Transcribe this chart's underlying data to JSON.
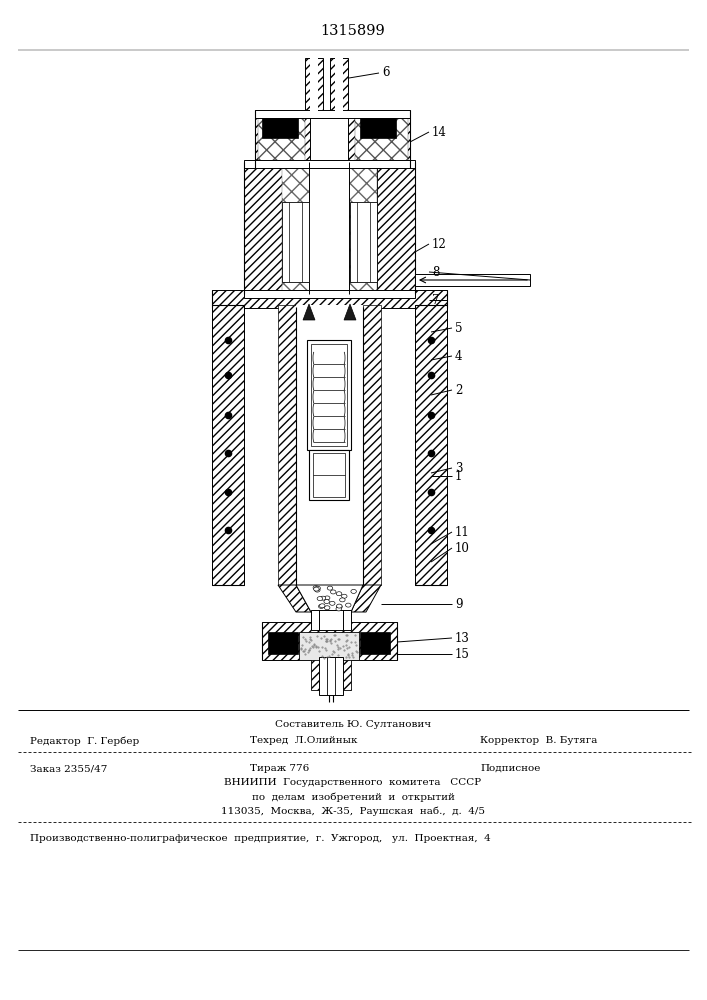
{
  "patent_number": "1315899",
  "bg_color": "#ffffff",
  "black": "#000000",
  "footer": {
    "sestavitel": "Составитель Ю. Султанович",
    "redaktor": "Редактор  Г. Гербер",
    "tehred": "Техред  Л.Олийнык",
    "korrektor": "Корректор  В. Бутяга",
    "zakaz": "Заказ 2355/47",
    "tirazh": "Тираж 776",
    "podpisnoe": "Подписное",
    "vniipи": "ВНИИПИ  Государственного  комитета   СССР",
    "po_delam": "по  делам  изобретений  и  открытий",
    "address": "113035,  Москва,  Ж-35,  Раушская  наб.,  д.  4/5",
    "plant": "Производственно-полиграфическое  предприятие,  г.  Ужгород,   ул.  Проектная,  4"
  }
}
